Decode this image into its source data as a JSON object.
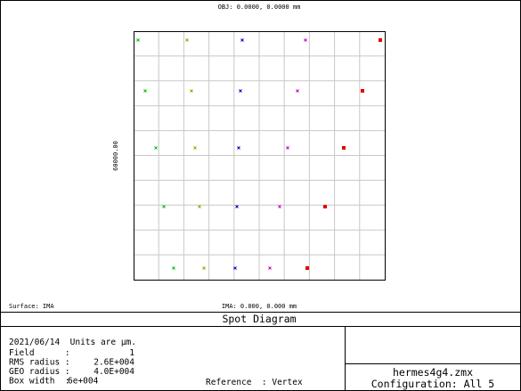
{
  "header": {
    "obj": "OBJ: 0.0000, 0.0000 mm"
  },
  "plot": {
    "scale_label": "60000.00",
    "surface": "Surface: IMA",
    "ima": "IMA: 0.000, 0.000 mm"
  },
  "title": "Spot Diagram",
  "info": {
    "line1": "2021/06/14  Units are µm.",
    "rows": [
      {
        "label": "Field      :",
        "value": "1"
      },
      {
        "label": "RMS radius :",
        "value": "2.6E+004"
      },
      {
        "label": "GEO radius :",
        "value": "4.0E+004"
      },
      {
        "label": "Box width  :",
        "value": "6e+004"
      }
    ],
    "reference": "Reference  : Vertex"
  },
  "file": {
    "name": "hermes4g4.zmx",
    "config": "Configuration: All 5"
  }
}
